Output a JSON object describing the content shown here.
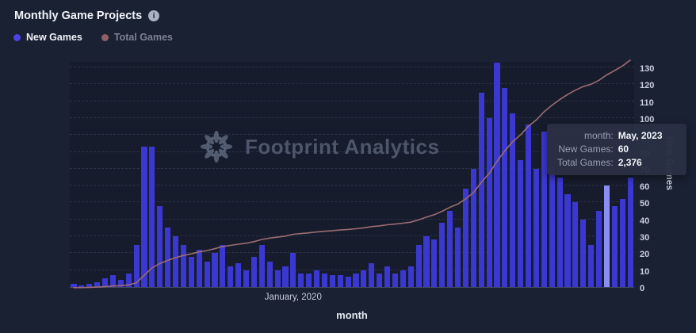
{
  "header": {
    "title": "Monthly Game Projects",
    "info_glyph": "i"
  },
  "legend": {
    "items": [
      {
        "label": "New Games",
        "color": "#4a43e6",
        "text_color": "#f0f2f7"
      },
      {
        "label": "Total Games",
        "color": "#8d5f67",
        "text_color": "#7c8294"
      }
    ]
  },
  "watermark": {
    "text": "Footprint Analytics"
  },
  "tooltip": {
    "rows": [
      {
        "label": "month:",
        "value": "May, 2023"
      },
      {
        "label": "New Games:",
        "value": "60"
      },
      {
        "label": "Total Games:",
        "value": "2,376"
      }
    ]
  },
  "chart_data": {
    "type": "bar",
    "title": "Monthly Game Projects",
    "xlabel": "month",
    "x_tick_label": "January, 2020",
    "x_tick_month": "2020-01",
    "hover_month": "2023-05",
    "hover_index": 68,
    "y_axis_right": {
      "title": "New Games",
      "min": 0,
      "max": 130,
      "step": 10
    },
    "line_scale_max": 2500,
    "grid": "dashed-horizontal",
    "legend_position": "top-left",
    "months": [
      "2017-09",
      "2017-10",
      "2017-11",
      "2017-12",
      "2018-01",
      "2018-02",
      "2018-03",
      "2018-04",
      "2018-05",
      "2018-06",
      "2018-07",
      "2018-08",
      "2018-09",
      "2018-10",
      "2018-11",
      "2018-12",
      "2019-01",
      "2019-02",
      "2019-03",
      "2019-04",
      "2019-05",
      "2019-06",
      "2019-07",
      "2019-08",
      "2019-09",
      "2019-10",
      "2019-11",
      "2019-12",
      "2020-01",
      "2020-02",
      "2020-03",
      "2020-04",
      "2020-05",
      "2020-06",
      "2020-07",
      "2020-08",
      "2020-09",
      "2020-10",
      "2020-11",
      "2020-12",
      "2021-01",
      "2021-02",
      "2021-03",
      "2021-04",
      "2021-05",
      "2021-06",
      "2021-07",
      "2021-08",
      "2021-09",
      "2021-10",
      "2021-11",
      "2021-12",
      "2022-01",
      "2022-02",
      "2022-03",
      "2022-04",
      "2022-05",
      "2022-06",
      "2022-07",
      "2022-08",
      "2022-09",
      "2022-10",
      "2022-11",
      "2022-12",
      "2023-01",
      "2023-02",
      "2023-03",
      "2023-04",
      "2023-05",
      "2023-06",
      "2023-07",
      "2023-08"
    ],
    "series": [
      {
        "name": "New Games",
        "type": "bar",
        "color": "#3b38d1",
        "hover_color": "#8a8df1",
        "values": [
          2,
          1,
          2,
          3,
          5,
          7,
          4,
          8,
          25,
          83,
          83,
          48,
          35,
          30,
          25,
          18,
          22,
          15,
          20,
          25,
          12,
          14,
          10,
          18,
          25,
          15,
          10,
          12,
          20,
          8,
          8,
          10,
          8,
          7,
          7,
          6,
          8,
          10,
          14,
          8,
          12,
          8,
          10,
          12,
          25,
          30,
          28,
          38,
          45,
          35,
          58,
          70,
          115,
          100,
          133,
          118,
          103,
          75,
          96,
          70,
          92,
          72,
          65,
          55,
          50,
          40,
          25,
          45,
          60,
          48,
          52,
          65
        ]
      },
      {
        "name": "Total Games",
        "type": "line",
        "color": "#9c6c72",
        "values": [
          2,
          3,
          5,
          8,
          13,
          20,
          24,
          32,
          57,
          140,
          223,
          271,
          306,
          336,
          361,
          379,
          401,
          416,
          436,
          461,
          473,
          487,
          497,
          515,
          540,
          555,
          565,
          577,
          597,
          605,
          613,
          623,
          631,
          638,
          645,
          651,
          659,
          669,
          683,
          691,
          703,
          711,
          721,
          733,
          758,
          788,
          816,
          854,
          899,
          934,
          992,
          1062,
          1177,
          1277,
          1410,
          1528,
          1631,
          1706,
          1802,
          1872,
          1964,
          2036,
          2101,
          2156,
          2206,
          2246,
          2271,
          2316,
          2376,
          2424,
          2476,
          2541
        ]
      }
    ]
  }
}
